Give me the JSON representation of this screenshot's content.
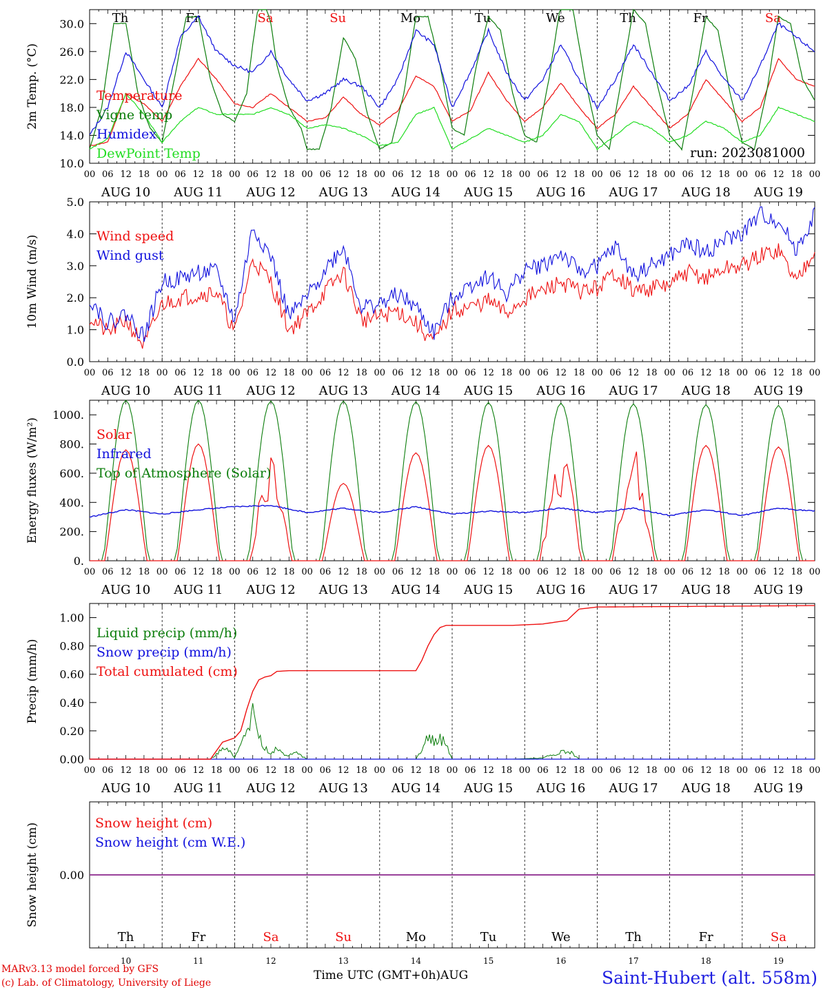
{
  "days": [
    {
      "dow": "Th",
      "date": "AUG 10",
      "num": "10",
      "weekend": false
    },
    {
      "dow": "Fr",
      "date": "AUG 11",
      "num": "11",
      "weekend": false
    },
    {
      "dow": "Sa",
      "date": "AUG 12",
      "num": "12",
      "weekend": true
    },
    {
      "dow": "Su",
      "date": "AUG 13",
      "num": "13",
      "weekend": true
    },
    {
      "dow": "Mo",
      "date": "AUG 14",
      "num": "14",
      "weekend": false
    },
    {
      "dow": "Tu",
      "date": "AUG 15",
      "num": "15",
      "weekend": false
    },
    {
      "dow": "We",
      "date": "AUG 16",
      "num": "16",
      "weekend": false
    },
    {
      "dow": "Th",
      "date": "AUG 17",
      "num": "17",
      "weekend": false
    },
    {
      "dow": "Fr",
      "date": "AUG 18",
      "num": "18",
      "weekend": false
    },
    {
      "dow": "Sa",
      "date": "AUG 19",
      "num": "19",
      "weekend": true
    }
  ],
  "hour_ticks": [
    "00",
    "06",
    "12",
    "18"
  ],
  "run_label": "run: 2023081000",
  "x_axis_title": "Time UTC (GMT+0h)",
  "x_axis_month": "AUG",
  "credit_line1": "MARv3.13 model forced by GFS",
  "credit_line2": "(c) Lab. of Climatology, University of Liege",
  "station": "Saint-Hubert (alt. 558m)",
  "chart_data": [
    {
      "type": "line",
      "ylabel": "2m Temp. (°C)",
      "ylim": [
        10,
        32
      ],
      "yticks": [
        10,
        14,
        18,
        22,
        26,
        30
      ],
      "ytick_labels": [
        "10.0",
        "14.0",
        "18.0",
        "22.0",
        "26.0",
        "30.0"
      ],
      "x_unit": "hours since Aug 10 00 UTC",
      "xlim": [
        0,
        240
      ],
      "series": [
        {
          "name": "Temperature",
          "color": "#ee1010",
          "x": [
            0,
            6,
            12,
            18,
            24,
            30,
            36,
            42,
            48,
            54,
            60,
            66,
            72,
            78,
            84,
            90,
            96,
            102,
            108,
            114,
            120,
            126,
            132,
            138,
            144,
            150,
            156,
            162,
            168,
            174,
            180,
            186,
            192,
            198,
            204,
            210,
            216,
            222,
            228,
            234,
            240
          ],
          "y": [
            12.5,
            13,
            20,
            18.5,
            16,
            21,
            25,
            22,
            18.5,
            18,
            20,
            18,
            16,
            16.5,
            19.5,
            17,
            15.5,
            17.5,
            22.5,
            21,
            16,
            17.5,
            23,
            19,
            16,
            18,
            21.5,
            18,
            15,
            17,
            21,
            18,
            15,
            17,
            22,
            19,
            16,
            18,
            25,
            22,
            21
          ]
        },
        {
          "name": "Vigne temp",
          "color": "#0b7d0b",
          "x": [
            0,
            4,
            8,
            12,
            16,
            20,
            24,
            28,
            32,
            36,
            40,
            44,
            48,
            52,
            54,
            56,
            58,
            60,
            62,
            66,
            70,
            72,
            76,
            80,
            84,
            88,
            92,
            96,
            100,
            104,
            108,
            112,
            116,
            120,
            124,
            128,
            132,
            136,
            140,
            144,
            148,
            152,
            156,
            160,
            164,
            168,
            172,
            176,
            180,
            184,
            188,
            192,
            196,
            200,
            204,
            208,
            212,
            216,
            220,
            224,
            228,
            232,
            236,
            240
          ],
          "y": [
            12,
            18,
            30,
            30,
            20,
            15,
            13,
            22,
            31,
            31,
            22,
            17,
            16,
            20,
            27,
            33,
            33,
            30,
            24,
            18,
            15,
            12,
            12,
            18,
            28,
            25,
            17,
            12,
            13,
            20,
            31,
            31,
            24,
            15,
            14,
            24,
            31,
            29,
            20,
            14,
            13,
            22,
            33,
            32,
            22,
            14,
            12,
            22,
            32,
            30,
            21,
            14,
            12,
            21,
            31,
            29,
            20,
            13,
            12,
            20,
            31,
            30,
            22,
            19
          ]
        },
        {
          "name": "Humidex",
          "color": "#1010dd",
          "x": [
            0,
            6,
            12,
            18,
            24,
            30,
            36,
            42,
            48,
            54,
            60,
            66,
            72,
            78,
            84,
            90,
            96,
            102,
            108,
            114,
            120,
            126,
            132,
            138,
            144,
            150,
            156,
            162,
            168,
            174,
            180,
            186,
            192,
            198,
            204,
            210,
            216,
            222,
            228,
            234,
            240
          ],
          "y": [
            14,
            18,
            26,
            22,
            18,
            28,
            31,
            26,
            24,
            23,
            26,
            22,
            19,
            20,
            22,
            21,
            18,
            22,
            29,
            27,
            18,
            23,
            29,
            23,
            19,
            22,
            27,
            22,
            18,
            22,
            27,
            23,
            19,
            21,
            26,
            22,
            19,
            24,
            30,
            28,
            26
          ]
        },
        {
          "name": "DewPoint Temp",
          "color": "#22dd22",
          "x": [
            0,
            6,
            12,
            18,
            24,
            30,
            36,
            42,
            48,
            54,
            60,
            66,
            72,
            78,
            84,
            90,
            96,
            102,
            108,
            114,
            120,
            126,
            132,
            138,
            144,
            150,
            156,
            162,
            168,
            174,
            180,
            186,
            192,
            198,
            204,
            210,
            216,
            222,
            228,
            234,
            240
          ],
          "y": [
            12,
            13.5,
            20,
            17,
            13,
            16,
            18,
            17,
            17,
            17,
            18,
            17,
            15,
            15.5,
            15,
            14,
            12.5,
            13,
            17,
            18,
            12,
            13.5,
            15,
            14,
            13,
            14,
            17,
            16,
            12,
            14,
            16,
            15,
            13,
            14,
            16,
            15,
            13,
            14,
            18,
            17,
            16
          ]
        }
      ]
    },
    {
      "type": "line",
      "ylabel": "10m Wind (m/s)",
      "ylim": [
        0,
        5
      ],
      "yticks": [
        0,
        1,
        2,
        3,
        4,
        5
      ],
      "ytick_labels": [
        "0.0",
        "1.0",
        "2.0",
        "3.0",
        "4.0",
        "5.0"
      ],
      "x_unit": "hours since Aug 10 00 UTC",
      "xlim": [
        0,
        240
      ],
      "series": [
        {
          "name": "Wind speed",
          "color": "#ee1010",
          "x": [
            0,
            6,
            12,
            18,
            24,
            30,
            36,
            42,
            48,
            54,
            60,
            66,
            72,
            78,
            84,
            90,
            96,
            102,
            108,
            114,
            120,
            126,
            132,
            138,
            144,
            150,
            156,
            162,
            168,
            174,
            180,
            186,
            192,
            198,
            204,
            210,
            216,
            222,
            228,
            234,
            240
          ],
          "y": [
            1.4,
            0.9,
            1.3,
            0.5,
            1.8,
            2.0,
            2.1,
            2.2,
            0.9,
            3.2,
            2.5,
            1.0,
            1.5,
            2.2,
            2.8,
            1.3,
            1.4,
            1.6,
            1.2,
            0.6,
            1.6,
            1.7,
            1.9,
            1.5,
            2.0,
            2.2,
            2.5,
            2.2,
            2.3,
            2.8,
            2.2,
            2.3,
            2.4,
            2.8,
            2.6,
            2.9,
            3.0,
            3.3,
            3.5,
            2.5,
            3.6
          ]
        },
        {
          "name": "Wind gust",
          "color": "#1010dd",
          "x": [
            0,
            6,
            12,
            18,
            24,
            30,
            36,
            42,
            48,
            54,
            60,
            66,
            72,
            78,
            84,
            90,
            96,
            102,
            108,
            114,
            120,
            126,
            132,
            138,
            144,
            150,
            156,
            162,
            168,
            174,
            180,
            186,
            192,
            198,
            204,
            210,
            216,
            222,
            228,
            234,
            240
          ],
          "y": [
            2.0,
            1.2,
            1.5,
            0.8,
            2.5,
            2.6,
            2.8,
            2.8,
            1.3,
            4.2,
            3.3,
            1.4,
            2.0,
            2.9,
            3.6,
            1.7,
            1.8,
            2.1,
            1.7,
            0.9,
            2.0,
            2.4,
            2.7,
            2.1,
            2.9,
            3.0,
            3.4,
            2.8,
            3.0,
            3.6,
            2.7,
            3.0,
            3.3,
            3.7,
            3.4,
            3.8,
            4.0,
            4.6,
            4.4,
            3.5,
            4.6
          ]
        }
      ]
    },
    {
      "type": "line",
      "ylabel": "Energy fluxes (W/m²)",
      "ylim": [
        0,
        1100
      ],
      "yticks": [
        0,
        200,
        400,
        600,
        800,
        1000
      ],
      "ytick_labels": [
        "0.",
        "200.",
        "400.",
        "600.",
        "800.",
        "1000."
      ],
      "x_unit": "hours since Aug 10 00 UTC",
      "xlim": [
        0,
        240
      ],
      "series": [
        {
          "name": "Solar",
          "color": "#ee1010",
          "day_peaks": [
            760,
            800,
            760,
            530,
            740,
            790,
            780,
            780,
            790,
            780
          ]
        },
        {
          "name": "Infrared",
          "color": "#1010dd",
          "x": [
            0,
            12,
            24,
            36,
            48,
            60,
            72,
            84,
            96,
            108,
            120,
            132,
            144,
            156,
            168,
            180,
            192,
            204,
            216,
            228,
            240
          ],
          "y": [
            300,
            350,
            320,
            350,
            370,
            380,
            330,
            360,
            330,
            370,
            320,
            340,
            330,
            360,
            330,
            360,
            310,
            350,
            310,
            360,
            340
          ]
        },
        {
          "name": "Top of Atmosphere (Solar)",
          "color": "#0b7d0b",
          "day_peaks": [
            1100,
            1100,
            1095,
            1095,
            1090,
            1085,
            1080,
            1075,
            1070,
            1065
          ]
        }
      ]
    },
    {
      "type": "line",
      "ylabel": "Precip (mm/h)",
      "ylim": [
        0,
        1.1
      ],
      "yticks": [
        0,
        0.2,
        0.4,
        0.6,
        0.8,
        1.0
      ],
      "ytick_labels": [
        "0.00",
        "0.20",
        "0.40",
        "0.60",
        "0.80",
        "1.00"
      ],
      "x_unit": "hours since Aug 10 00 UTC",
      "xlim": [
        0,
        240
      ],
      "series": [
        {
          "name": "Liquid precip (mm/h)",
          "color": "#0b7d0b",
          "x": [
            0,
            40,
            42,
            44,
            46,
            48,
            50,
            52,
            54,
            56,
            58,
            60,
            62,
            64,
            66,
            68,
            70,
            72,
            108,
            110,
            112,
            114,
            116,
            118,
            120,
            140,
            150,
            152,
            154,
            156,
            158,
            160,
            162,
            170,
            240
          ],
          "y": [
            0,
            0,
            0.05,
            0.1,
            0.08,
            0.02,
            0.1,
            0.3,
            0.38,
            0.2,
            0.1,
            0.05,
            0.1,
            0.05,
            0.03,
            0.06,
            0.03,
            0,
            0,
            0.1,
            0.2,
            0.15,
            0.2,
            0.12,
            0,
            0,
            0.01,
            0.03,
            0.05,
            0.06,
            0.08,
            0.05,
            0,
            0,
            0
          ]
        },
        {
          "name": "Snow precip (mm/h)",
          "color": "#1010dd",
          "x": [
            0,
            240
          ],
          "y": [
            0,
            0
          ]
        },
        {
          "name": "Total cumulated (cm)",
          "color": "#ee1010",
          "x": [
            0,
            40,
            44,
            48,
            50,
            52,
            54,
            56,
            58,
            60,
            62,
            66,
            72,
            108,
            110,
            112,
            114,
            116,
            118,
            120,
            140,
            150,
            158,
            162,
            168,
            240
          ],
          "y": [
            0,
            0,
            0.12,
            0.15,
            0.2,
            0.35,
            0.48,
            0.56,
            0.58,
            0.59,
            0.62,
            0.625,
            0.625,
            0.625,
            0.7,
            0.8,
            0.88,
            0.93,
            0.945,
            0.945,
            0.945,
            0.955,
            0.98,
            1.06,
            1.075,
            1.085
          ]
        }
      ]
    },
    {
      "type": "line",
      "ylabel": "Snow height (cm)",
      "ylim": [
        -1,
        1
      ],
      "yticks": [
        0
      ],
      "ytick_labels": [
        "0.00"
      ],
      "x_unit": "hours since Aug 10 00 UTC",
      "xlim": [
        0,
        240
      ],
      "series": [
        {
          "name": "Snow height (cm)",
          "color": "#ee1010",
          "x": [
            0,
            240
          ],
          "y": [
            0,
            0
          ]
        },
        {
          "name": "Snow height (cm W.E.)",
          "color": "#1010dd",
          "x": [
            0,
            240
          ],
          "y": [
            0,
            0
          ]
        }
      ]
    }
  ]
}
